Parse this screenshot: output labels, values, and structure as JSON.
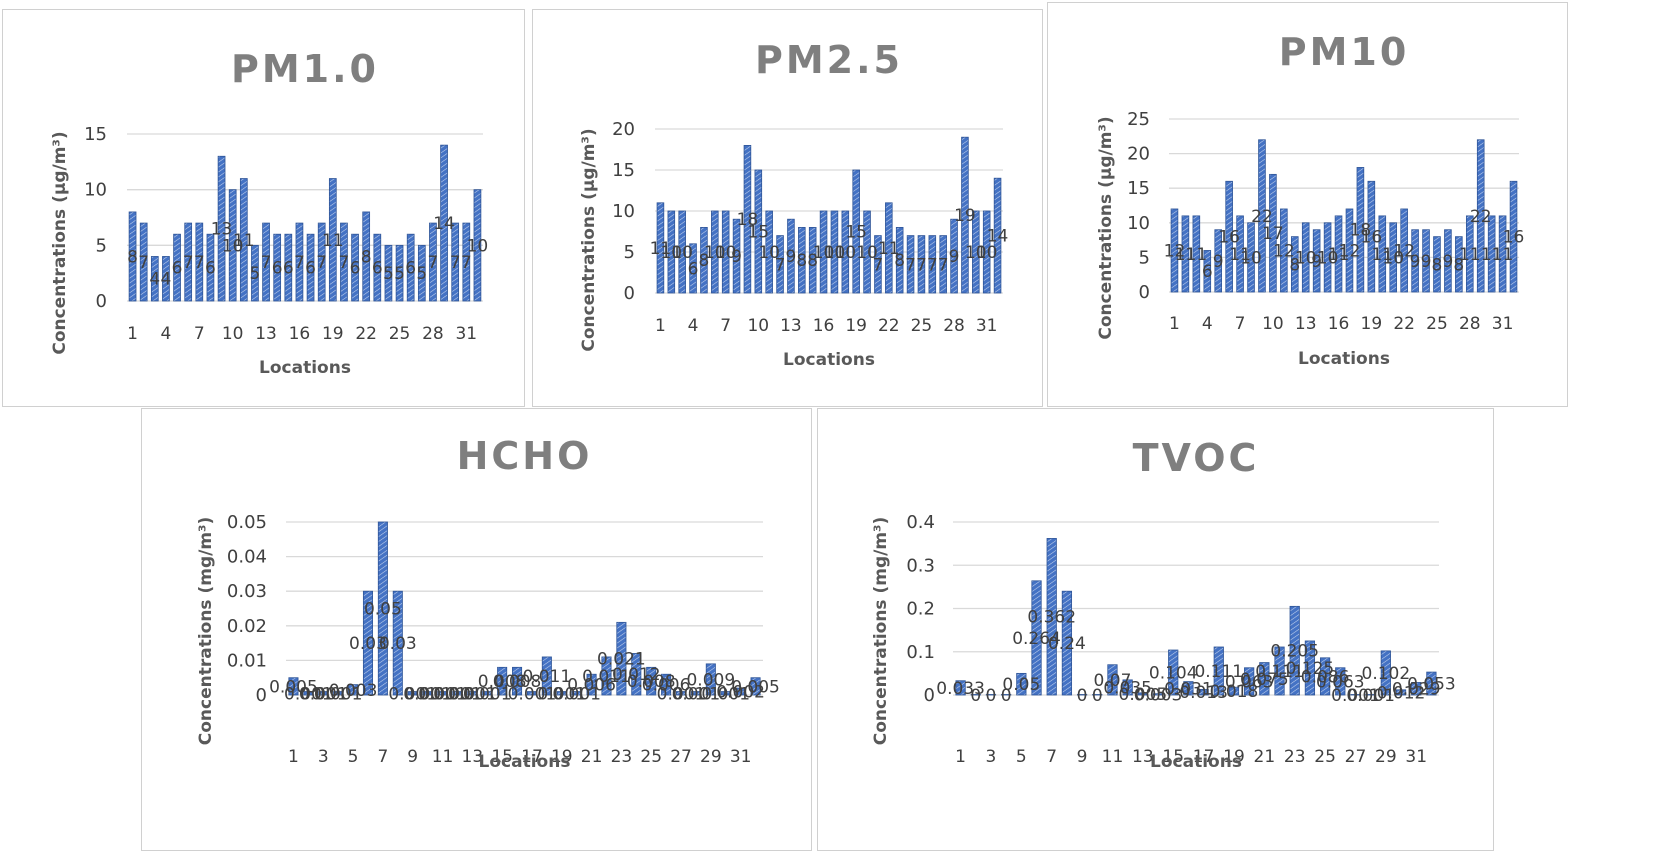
{
  "chart_data": [
    {
      "type": "bar",
      "title": "PM1.0",
      "xlabel": "Locations",
      "ylabel": "Concentrations (µg/m³)",
      "ylim": [
        0,
        15
      ],
      "yticks": [
        "0",
        "5",
        "10",
        "15"
      ],
      "xticks": [
        "1",
        "4",
        "7",
        "10",
        "13",
        "16",
        "19",
        "22",
        "25",
        "28",
        "31"
      ],
      "categories": [
        "1",
        "2",
        "3",
        "4",
        "5",
        "6",
        "7",
        "8",
        "9",
        "10",
        "11",
        "12",
        "13",
        "14",
        "15",
        "16",
        "17",
        "18",
        "19",
        "20",
        "21",
        "22",
        "23",
        "24",
        "25",
        "26",
        "27",
        "28",
        "29",
        "30",
        "31",
        "32"
      ],
      "values": [
        8,
        7,
        4,
        4,
        6,
        7,
        7,
        6,
        13,
        10,
        11,
        5,
        7,
        6,
        6,
        7,
        6,
        7,
        11,
        7,
        6,
        8,
        6,
        5,
        5,
        6,
        5,
        7,
        14,
        7,
        7,
        10
      ],
      "data_labels": [
        "8",
        "7",
        "4",
        "4",
        "6",
        "7",
        "7",
        "6",
        "13",
        "10",
        "11",
        "5",
        "7",
        "6",
        "6",
        "7",
        "6",
        "7",
        "11",
        "7",
        "6",
        "8",
        "6",
        "5",
        "5",
        "6",
        "5",
        "7",
        "14",
        "7",
        "7",
        "10"
      ],
      "grid": true,
      "bar_color": "#4472c4"
    },
    {
      "type": "bar",
      "title": "PM2.5",
      "xlabel": "Locations",
      "ylabel": "Concentrations (µg/m³)",
      "ylim": [
        0,
        20
      ],
      "yticks": [
        "0",
        "5",
        "10",
        "15",
        "20"
      ],
      "xticks": [
        "1",
        "4",
        "7",
        "10",
        "13",
        "16",
        "19",
        "22",
        "25",
        "28",
        "31"
      ],
      "categories": [
        "1",
        "2",
        "3",
        "4",
        "5",
        "6",
        "7",
        "8",
        "9",
        "10",
        "11",
        "12",
        "13",
        "14",
        "15",
        "16",
        "17",
        "18",
        "19",
        "20",
        "21",
        "22",
        "23",
        "24",
        "25",
        "26",
        "27",
        "28",
        "29",
        "30",
        "31",
        "32"
      ],
      "values": [
        11,
        10,
        10,
        6,
        8,
        10,
        10,
        9,
        18,
        15,
        10,
        7,
        9,
        8,
        8,
        10,
        10,
        10,
        15,
        10,
        7,
        11,
        8,
        7,
        7,
        7,
        7,
        9,
        19,
        10,
        10,
        14
      ],
      "data_labels": [
        "11",
        "10",
        "10",
        "6",
        "8",
        "10",
        "10",
        "9",
        "18",
        "15",
        "10",
        "7",
        "9",
        "8",
        "8",
        "10",
        "10",
        "10",
        "15",
        "10",
        "7",
        "11",
        "8",
        "7",
        "7",
        "7",
        "7",
        "9",
        "19",
        "10",
        "10",
        "14"
      ],
      "grid": true,
      "bar_color": "#4472c4"
    },
    {
      "type": "bar",
      "title": "PM10",
      "xlabel": "Locations",
      "ylabel": "Concentrations (µg/m³)",
      "ylim": [
        0,
        25
      ],
      "yticks": [
        "0",
        "5",
        "10",
        "15",
        "20",
        "25"
      ],
      "xticks": [
        "1",
        "4",
        "7",
        "10",
        "13",
        "16",
        "19",
        "22",
        "25",
        "28",
        "31"
      ],
      "categories": [
        "1",
        "2",
        "3",
        "4",
        "5",
        "6",
        "7",
        "8",
        "9",
        "10",
        "11",
        "12",
        "13",
        "14",
        "15",
        "16",
        "17",
        "18",
        "19",
        "20",
        "21",
        "22",
        "23",
        "24",
        "25",
        "26",
        "27",
        "28",
        "29",
        "30",
        "31",
        "32"
      ],
      "values": [
        12,
        11,
        11,
        6,
        9,
        16,
        11,
        10,
        22,
        17,
        12,
        8,
        10,
        9,
        10,
        11,
        12,
        18,
        16,
        11,
        10,
        12,
        9,
        9,
        8,
        9,
        8,
        11,
        22,
        11,
        11,
        16
      ],
      "data_labels": [
        "12",
        "11",
        "11",
        "6",
        "9",
        "16",
        "11",
        "10",
        "22",
        "17",
        "12",
        "8",
        "10",
        "9",
        "10",
        "11",
        "12",
        "18",
        "16",
        "11",
        "10",
        "12",
        "9",
        "9",
        "8",
        "9",
        "8",
        "11",
        "22",
        "11",
        "11",
        "16"
      ],
      "grid": true,
      "bar_color": "#4472c4"
    },
    {
      "type": "bar",
      "title": "HCHO",
      "xlabel": "Locations",
      "ylabel": "Concentrations (mg/m³)",
      "ylim": [
        0,
        0.05
      ],
      "yticks": [
        "0",
        "0.01",
        "0.02",
        "0.03",
        "0.04",
        "0.05"
      ],
      "xticks": [
        "1",
        "3",
        "5",
        "7",
        "9",
        "11",
        "13",
        "15",
        "17",
        "19",
        "21",
        "23",
        "25",
        "27",
        "29",
        "31"
      ],
      "categories": [
        "1",
        "2",
        "3",
        "4",
        "5",
        "6",
        "7",
        "8",
        "9",
        "10",
        "11",
        "12",
        "13",
        "14",
        "15",
        "16",
        "17",
        "18",
        "19",
        "20",
        "21",
        "22",
        "23",
        "24",
        "25",
        "26",
        "27",
        "28",
        "29",
        "30",
        "31",
        "32"
      ],
      "values": [
        0.005,
        0.001,
        0.001,
        0.001,
        0.003,
        0.03,
        0.05,
        0.03,
        0.001,
        0.001,
        0.001,
        0.001,
        0.001,
        0.001,
        0.008,
        0.008,
        0.001,
        0.011,
        0.001,
        0.001,
        0.006,
        0.011,
        0.021,
        0.012,
        0.008,
        0.006,
        0.001,
        0.001,
        0.009,
        0.001,
        0.002,
        0.005
      ],
      "data_labels": [
        "0.005",
        "0.001",
        "0.001",
        "0.001",
        "0.003",
        "0.03",
        "0.05",
        "0.03",
        "0.001",
        "0.001",
        "0.001",
        "0.001",
        "0.001",
        "0.001",
        "0.008",
        "0.008",
        "0.001",
        "0.011",
        "0.001",
        "0.001",
        "0.006",
        "0.011",
        "0.021",
        "0.012",
        "0.008",
        "0.006",
        "0.001",
        "0.001",
        "0.009",
        "0.001",
        "0.002",
        "0.005"
      ],
      "grid": true,
      "bar_color": "#4472c4"
    },
    {
      "type": "bar",
      "title": "TVOC",
      "xlabel": "Locations",
      "ylabel": "Concentrations (mg/m³)",
      "ylim": [
        0,
        0.4
      ],
      "yticks": [
        "0",
        "0.1",
        "0.2",
        "0.3",
        "0.4"
      ],
      "xticks": [
        "1",
        "3",
        "5",
        "7",
        "9",
        "11",
        "13",
        "15",
        "17",
        "19",
        "21",
        "23",
        "25",
        "27",
        "29",
        "31"
      ],
      "categories": [
        "1",
        "2",
        "3",
        "4",
        "5",
        "6",
        "7",
        "8",
        "9",
        "10",
        "11",
        "12",
        "13",
        "14",
        "15",
        "16",
        "17",
        "18",
        "19",
        "20",
        "21",
        "22",
        "23",
        "24",
        "25",
        "26",
        "27",
        "28",
        "29",
        "30",
        "31",
        "32"
      ],
      "values": [
        0.033,
        0,
        0,
        0,
        0.05,
        0.264,
        0.362,
        0.24,
        0,
        0,
        0.07,
        0.035,
        0.005,
        0.003,
        0.104,
        0.031,
        0.013,
        0.111,
        0.018,
        0.063,
        0.075,
        0.111,
        0.205,
        0.125,
        0.086,
        0.063,
        0.001,
        0.001,
        0.102,
        0.012,
        0.029,
        0.053
      ],
      "data_labels": [
        "0.033",
        "0",
        "0",
        "0",
        "0.05",
        "0.264",
        "0.362",
        "0.24",
        "0",
        "0",
        "0.07",
        "0.035",
        "0.005",
        "0.003",
        "0.104",
        "0.031",
        "0.013",
        "0.111",
        "0.018",
        "0.063",
        "0.075",
        "0.111",
        "0.205",
        "0.125",
        "0.086",
        "0.063",
        "0.001",
        "0.001",
        "0.102",
        "0.012",
        "0.029",
        "0.053"
      ],
      "grid": true,
      "bar_color": "#4472c4"
    }
  ]
}
